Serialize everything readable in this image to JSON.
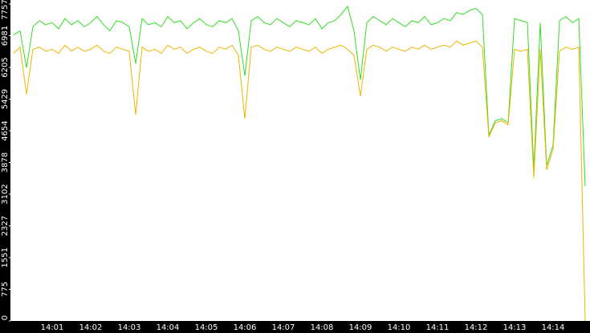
{
  "chart_data": {
    "type": "line",
    "categories": [
      null,
      null,
      null,
      null,
      null,
      null,
      "14:01",
      null,
      null,
      null,
      null,
      null,
      "14:02",
      null,
      null,
      null,
      null,
      null,
      "14:03",
      null,
      null,
      null,
      null,
      null,
      "14:04",
      null,
      null,
      null,
      null,
      null,
      "14:05",
      null,
      null,
      null,
      null,
      null,
      "14:06",
      null,
      null,
      null,
      null,
      null,
      "14:07",
      null,
      null,
      null,
      null,
      null,
      "14:08",
      null,
      null,
      null,
      null,
      null,
      "14:09",
      null,
      null,
      null,
      null,
      null,
      "14:10",
      null,
      null,
      null,
      null,
      null,
      "14:11",
      null,
      null,
      null,
      null,
      null,
      "14:12",
      null,
      null,
      null,
      null,
      null,
      "14:13",
      null,
      null,
      null,
      null,
      null,
      "14:14",
      null,
      null,
      null,
      null,
      null
    ],
    "series": [
      {
        "color": "#33dd22",
        "values": [
          7000,
          7100,
          6200,
          7200,
          7350,
          7250,
          7300,
          7150,
          7400,
          7250,
          7350,
          7200,
          7300,
          7450,
          7250,
          7100,
          7350,
          7300,
          7200,
          6300,
          7400,
          7250,
          7300,
          7200,
          7450,
          7300,
          7350,
          7150,
          7300,
          7400,
          7250,
          7200,
          7350,
          7300,
          7400,
          7100,
          6000,
          7350,
          7450,
          7300,
          7250,
          7400,
          7300,
          7200,
          7350,
          7300,
          7250,
          7400,
          7150,
          7300,
          7350,
          7500,
          7700,
          7100,
          5900,
          7300,
          7450,
          7350,
          7250,
          7400,
          7300,
          7200,
          7350,
          7300,
          7450,
          7250,
          7300,
          7400,
          7350,
          7550,
          7500,
          7600,
          7650,
          7500,
          4550,
          4900,
          4950,
          4850,
          7400,
          7350,
          7300,
          3700,
          7300,
          3800,
          4300,
          7350,
          7450,
          7300,
          7400,
          3300
        ]
      },
      {
        "color": "#f0b400",
        "values": [
          6550,
          6700,
          5550,
          6650,
          6700,
          6600,
          6650,
          6550,
          6750,
          6600,
          6700,
          6600,
          6650,
          6750,
          6600,
          6550,
          6700,
          6650,
          6600,
          5050,
          6700,
          6600,
          6650,
          6550,
          6750,
          6650,
          6700,
          6550,
          6650,
          6700,
          6600,
          6550,
          6700,
          6650,
          6750,
          6500,
          4950,
          6700,
          6750,
          6650,
          6600,
          6700,
          6650,
          6600,
          6700,
          6650,
          6600,
          6700,
          6550,
          6650,
          6700,
          6750,
          6650,
          6500,
          5500,
          6650,
          6750,
          6700,
          6600,
          6700,
          6650,
          6600,
          6700,
          6650,
          6750,
          6650,
          6700,
          6750,
          6700,
          6850,
          6750,
          6800,
          6850,
          6700,
          4500,
          4850,
          4900,
          4800,
          6650,
          6600,
          6650,
          3500,
          6650,
          3700,
          4200,
          6600,
          6700,
          6650,
          6700,
          0
        ]
      }
    ],
    "ylim": [
      0,
      7757
    ],
    "yticks": [
      0,
      775,
      1551,
      2327,
      3102,
      3878,
      4654,
      5429,
      6205,
      6981,
      7757
    ]
  }
}
